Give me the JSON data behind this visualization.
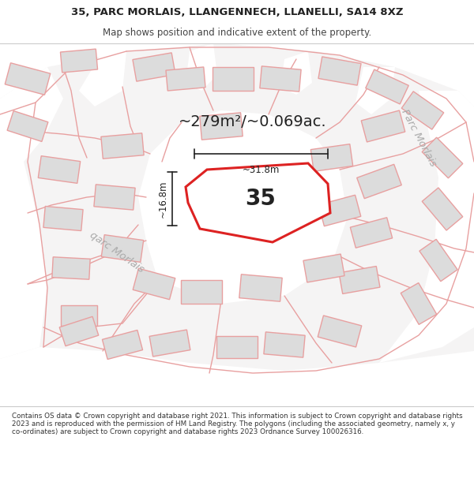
{
  "title_line1": "35, PARC MORLAIS, LLANGENNECH, LLANELLI, SA14 8XZ",
  "title_line2": "Map shows position and indicative extent of the property.",
  "footer_text": "Contains OS data © Crown copyright and database right 2021. This information is subject to Crown copyright and database rights 2023 and is reproduced with the permission of HM Land Registry. The polygons (including the associated geometry, namely x, y co-ordinates) are subject to Crown copyright and database rights 2023 Ordnance Survey 100026316.",
  "area_text": "~279m²/~0.069ac.",
  "property_label": "35",
  "dim_width": "~31.8m",
  "dim_height": "~16.8m",
  "map_bg": "#f5f4f4",
  "road_fill": "#ffffff",
  "building_fill": "#dcdcdc",
  "building_stroke": "#e8a0a0",
  "highlight_fill": "#ffffff",
  "highlight_stroke": "#dd2222",
  "white": "#ffffff",
  "footer_bg": "#ffffff",
  "road_line": "#e8a0a0",
  "label_road": "#aaaaaa",
  "dim_color": "#222222",
  "text_color": "#222222",
  "title_fontsize": 9.5,
  "subtitle_fontsize": 8.5,
  "area_fontsize": 14,
  "label_fontsize": 20,
  "dim_fontsize": 8.5,
  "road_label_fontsize": 9.5,
  "footer_fontsize": 6.3
}
